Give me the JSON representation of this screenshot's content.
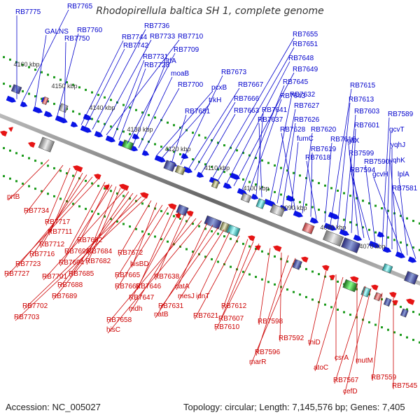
{
  "title": "Rhodopirellula baltica SH 1, complete genome",
  "footer": {
    "accession": "Accession: NC_005027",
    "summary": "Topology: circular; Length: 7,145,576 bp; Genes: 7,405"
  },
  "colors": {
    "forward_label": "#0000cc",
    "reverse_label": "#cc0000",
    "forward_feature": "#0a14e6",
    "reverse_feature": "#e61414",
    "backbone": "#808080",
    "ruler_dots": "#1a9a1a"
  },
  "ticks": [
    "4160 kbp",
    "4150 kbp",
    "4140 kbp",
    "4130 kbp",
    "4120 kbp",
    "4110 kbp",
    "4100 kbp",
    "4090 kbp",
    "4080 kbp",
    "4070 kbp"
  ],
  "forward_labels": [
    "RB7775",
    "RB7765",
    "GALNS",
    "RB7760",
    "RB7750",
    "RB7744",
    "RB7742",
    "RB7736",
    "RB7733",
    "RB7710",
    "RB7731",
    "RB7728",
    "RB7709",
    "ptfA",
    "moaB",
    "RB7700",
    "pcxB",
    "trkH",
    "RB7681",
    "RB7673",
    "RB7667",
    "RB7666",
    "RB7663",
    "RB7655",
    "RB7651",
    "RB7648",
    "RB7649",
    "RB7645",
    "RB7643",
    "RB7641",
    "RB7637",
    "RB7632",
    "RB7627",
    "RB7626",
    "fumC",
    "RB7628",
    "RB7620",
    "RB7619",
    "RB7618",
    "RB7616",
    "RB7615",
    "RB7613",
    "RB7603",
    "RB7601",
    "gltX",
    "RB7599",
    "RB7594",
    "RB7590",
    "RB7589",
    "gcvT",
    "yqhJ",
    "yqhK",
    "gcvH",
    "lplA",
    "RB7581"
  ],
  "reverse_labels": [
    "prtB",
    "RB7734",
    "RB7717",
    "RB7711",
    "RB7712",
    "RB7716",
    "RB7723",
    "RB7727",
    "RB7698",
    "RB7692",
    "RB7694",
    "RB7684",
    "RB7682",
    "RB7701",
    "RB7685",
    "RB7688",
    "RB7689",
    "RB7702",
    "RB7703",
    "RB7672",
    "hisBD",
    "RB7665",
    "RB7668",
    "RB7646",
    "RB7647",
    "RB7638",
    "mdh",
    "RB7658",
    "hisC",
    "natA",
    "natB",
    "RB7631",
    "mesJ",
    "idnT",
    "RB7621",
    "RB7612",
    "RB7607",
    "RB7610",
    "RB7598",
    "RB7592",
    "RB7596",
    "marR",
    "thiD",
    "csrA",
    "atoC",
    "mutM",
    "RB7567",
    "cefD",
    "RB7559",
    "RB7545"
  ]
}
